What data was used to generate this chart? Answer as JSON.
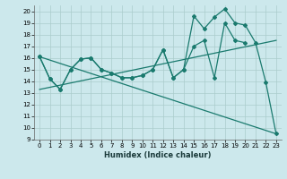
{
  "bg_color": "#cce8ec",
  "grid_color": "#aacccc",
  "line_color": "#1a7a6e",
  "xlabel": "Humidex (Indice chaleur)",
  "xlim": [
    -0.5,
    23.5
  ],
  "ylim": [
    9,
    20.5
  ],
  "xtick_labels": [
    "0",
    "1",
    "2",
    "3",
    "4",
    "5",
    "6",
    "7",
    "8",
    "9",
    "10",
    "11",
    "12",
    "13",
    "14",
    "15",
    "16",
    "17",
    "18",
    "19",
    "20",
    "21",
    "22",
    "23"
  ],
  "yticks": [
    9,
    10,
    11,
    12,
    13,
    14,
    15,
    16,
    17,
    18,
    19,
    20
  ],
  "series1_x": [
    0,
    1,
    2,
    3,
    4,
    5,
    6,
    7,
    8,
    9,
    10,
    11,
    12,
    13,
    14,
    15,
    16,
    17,
    18,
    19,
    20,
    21,
    22,
    23
  ],
  "series1_y": [
    16.1,
    14.2,
    13.3,
    15.0,
    15.9,
    16.0,
    15.0,
    14.7,
    14.3,
    14.3,
    14.5,
    15.0,
    16.7,
    14.3,
    15.0,
    19.6,
    18.5,
    19.5,
    20.2,
    19.0,
    18.8,
    17.3,
    13.9,
    9.5
  ],
  "series2_x": [
    0,
    1,
    2,
    3,
    4,
    5,
    6,
    7,
    8,
    9,
    10,
    11,
    12,
    13,
    14,
    15,
    16,
    17,
    18,
    19,
    20
  ],
  "series2_y": [
    16.1,
    14.2,
    13.3,
    15.0,
    15.9,
    16.0,
    15.0,
    14.7,
    14.3,
    14.3,
    14.5,
    15.0,
    16.7,
    14.3,
    15.0,
    17.0,
    17.5,
    14.3,
    19.0,
    17.5,
    17.3
  ],
  "series3_x": [
    0,
    23
  ],
  "series3_y": [
    16.1,
    9.5
  ],
  "series4_x": [
    0,
    23
  ],
  "series4_y": [
    13.3,
    17.5
  ]
}
